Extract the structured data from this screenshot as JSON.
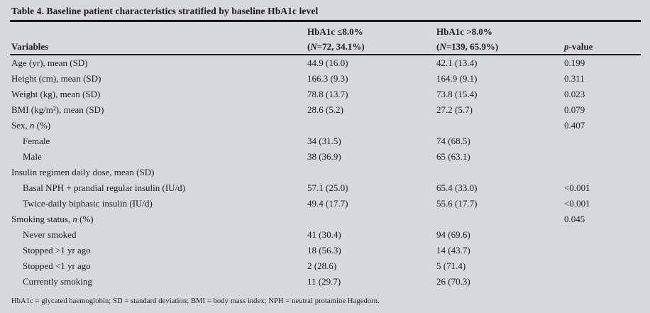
{
  "colors": {
    "background": "#d5d8dc",
    "text": "#1b1b22",
    "rule": "#16161b"
  },
  "title": "Table 4. Baseline patient characteristics stratified by baseline HbA1c level",
  "header": {
    "col1": "Variables",
    "col2": {
      "line1": "HbA1c ≤8.0%",
      "pre": "(",
      "it": "N",
      "post": "=72, 34.1%)"
    },
    "col3": {
      "line1": "HbA1c >8.0%",
      "pre": "(",
      "it": "N",
      "post": "=139, 65.9%)"
    },
    "col4": {
      "it": "p",
      "post": "-value"
    }
  },
  "table": {
    "rows": [
      {
        "indent": 0,
        "label": [
          {
            "t": "Age (yr), mean (SD)"
          }
        ],
        "c1": "44.9 (16.0)",
        "c2": "42.1 (13.4)",
        "p": "0.199"
      },
      {
        "indent": 0,
        "label": [
          {
            "t": "Height (cm), mean (SD)"
          }
        ],
        "c1": "166.3 (9.3)",
        "c2": "164.9 (9.1)",
        "p": "0.311"
      },
      {
        "indent": 0,
        "label": [
          {
            "t": "Weight (kg), mean (SD)"
          }
        ],
        "c1": "78.8 (13.7)",
        "c2": "73.8 (15.4)",
        "p": "0.023"
      },
      {
        "indent": 0,
        "label": [
          {
            "t": "BMI (kg/m²), mean (SD)"
          }
        ],
        "c1": "28.6 (5.2)",
        "c2": "27.2 (5.7)",
        "p": "0.079"
      },
      {
        "indent": 0,
        "label": [
          {
            "t": "Sex, "
          },
          {
            "t": "n",
            "i": true
          },
          {
            "t": " (%)"
          }
        ],
        "c1": "",
        "c2": "",
        "p": "0.407"
      },
      {
        "indent": 1,
        "label": [
          {
            "t": "Female"
          }
        ],
        "c1": "34 (31.5)",
        "c2": "74 (68.5)",
        "p": ""
      },
      {
        "indent": 1,
        "label": [
          {
            "t": "Male"
          }
        ],
        "c1": "38 (36.9)",
        "c2": "65 (63.1)",
        "p": ""
      },
      {
        "indent": 0,
        "label": [
          {
            "t": "Insulin regimen daily dose, mean (SD)"
          }
        ],
        "c1": "",
        "c2": "",
        "p": ""
      },
      {
        "indent": 1,
        "label": [
          {
            "t": "Basal NPH + prandial regular insulin (IU/d)"
          }
        ],
        "c1": "57.1 (25.0)",
        "c2": "65.4 (33.0)",
        "p": "<0.001"
      },
      {
        "indent": 1,
        "label": [
          {
            "t": "Twice-daily biphasic insulin (IU/d)"
          }
        ],
        "c1": "49.4 (17.7)",
        "c2": "55.6 (17.7)",
        "p": "<0.001"
      },
      {
        "indent": 0,
        "label": [
          {
            "t": "Smoking status, "
          },
          {
            "t": "n",
            "i": true
          },
          {
            "t": " (%)"
          }
        ],
        "c1": "",
        "c2": "",
        "p": "0.045"
      },
      {
        "indent": 1,
        "label": [
          {
            "t": "Never smoked"
          }
        ],
        "c1": "41 (30.4)",
        "c2": "94 (69.6)",
        "p": ""
      },
      {
        "indent": 1,
        "label": [
          {
            "t": "Stopped >1 yr ago"
          }
        ],
        "c1": "18 (56.3)",
        "c2": "14 (43.7)",
        "p": ""
      },
      {
        "indent": 1,
        "label": [
          {
            "t": "Stopped <1 yr ago"
          }
        ],
        "c1": "2 (28.6)",
        "c2": "5 (71.4)",
        "p": ""
      },
      {
        "indent": 1,
        "label": [
          {
            "t": "Currently smoking"
          }
        ],
        "c1": "11 (29.7)",
        "c2": "26 (70.3)",
        "p": ""
      }
    ]
  },
  "footnote": "HbA1c = glycated haemoglobin; SD = standard deviation; BMI = body mass index; NPH = neutral protamine Hagedorn."
}
